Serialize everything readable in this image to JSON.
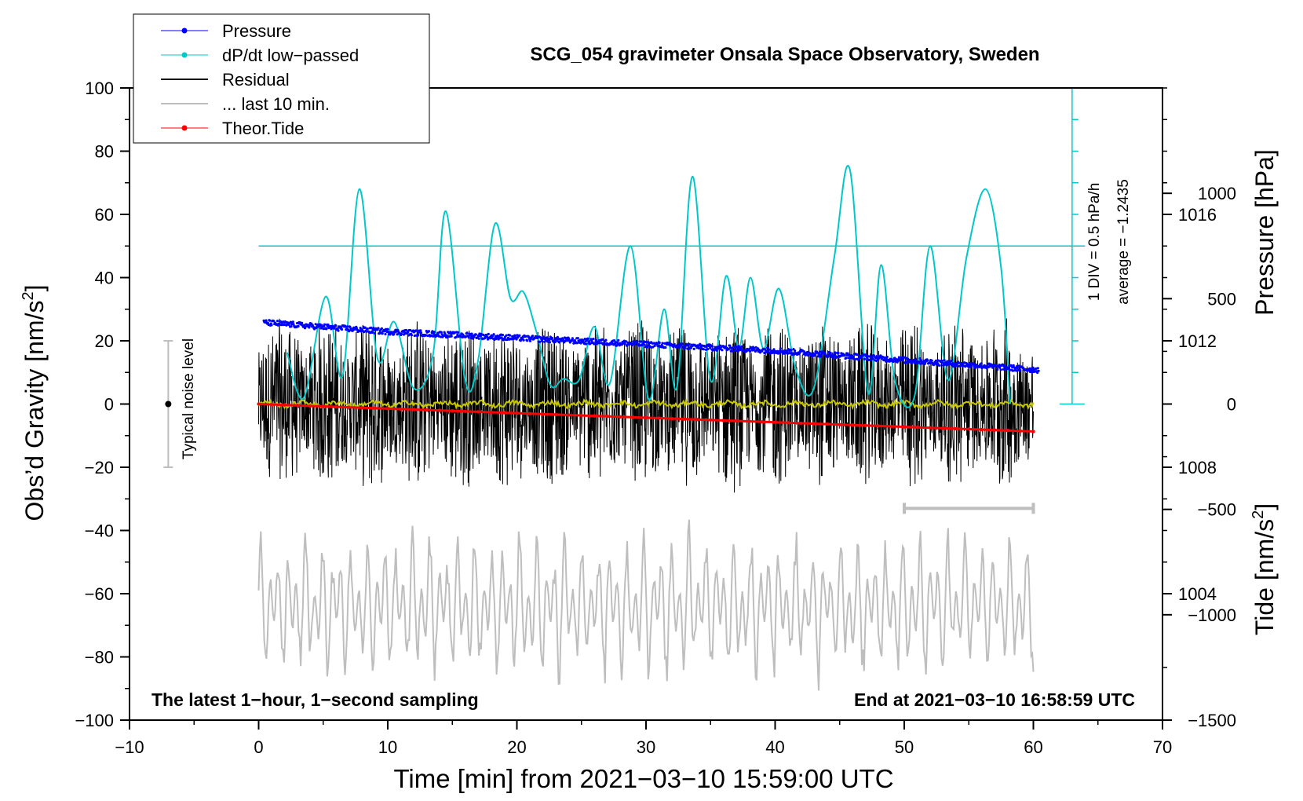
{
  "chart_data": {
    "type": "line",
    "title": "SCG_054 gravimeter Onsala Space Observatory, Sweden",
    "xlabel": "Time [min] from 2021−03−10 15:59:00 UTC",
    "ylabel_left_main": "Obs’d Gravity [nm/s",
    "ylabel_left_sup": "2",
    "ylabel_left_end": "]",
    "ylabel_right_pressure": "Pressure [hPa]",
    "ylabel_right_tide_main": "Tide [nm/s",
    "ylabel_right_tide_sup": "2",
    "ylabel_right_tide_end": "]",
    "xlim": [
      -10,
      70
    ],
    "ylim": [
      -100,
      100
    ],
    "pressure_lim": [
      1000,
      1020
    ],
    "tide_lim": [
      -1500,
      1500
    ],
    "x_ticks": [
      -10,
      0,
      10,
      20,
      30,
      40,
      50,
      60,
      70
    ],
    "x_tick_labels": [
      "−10",
      "0",
      "10",
      "20",
      "30",
      "40",
      "50",
      "60",
      "70"
    ],
    "y_ticks": [
      100,
      80,
      60,
      40,
      20,
      0,
      -20,
      -40,
      -60,
      -80,
      -100
    ],
    "y_tick_labels": [
      "100",
      "80",
      "60",
      "40",
      "20",
      "0",
      "−20",
      "−40",
      "−60",
      "−80",
      "−100"
    ],
    "pressure_ticks": [
      1016,
      1012,
      1008,
      1004
    ],
    "pressure_tick_labels": [
      "1016",
      "1012",
      "1008",
      "1004"
    ],
    "tide_ticks": [
      1000,
      500,
      0,
      -500,
      -1000,
      -1500
    ],
    "tide_tick_labels": [
      "1000",
      "500",
      "0",
      "−500",
      "−1000",
      "−1500"
    ],
    "legend": {
      "position": "top-left",
      "entries": [
        {
          "label": "Pressure",
          "color": "#0000ff",
          "marker": true
        },
        {
          "label": "dP/dt low−passed",
          "color": "#00c8c8",
          "marker": true
        },
        {
          "label": "Residual",
          "color": "#000000",
          "marker": false
        },
        {
          "label": "... last 10 min.",
          "color": "#bebebe",
          "marker": false
        },
        {
          "label": "Theor.Tide",
          "color": "#ff0000",
          "marker": true
        }
      ]
    },
    "annotations": {
      "bottom_left": "The latest 1−hour, 1−second sampling",
      "bottom_right": "End at 2021−03−10 16:58:59 UTC",
      "noise_label": "Typical noise level",
      "dpdt_div": "1 DIV = 0.5 hPa/h",
      "dpdt_avg": "average = −1.2435"
    },
    "noise_level": {
      "x": -7,
      "center": 0,
      "low": -20,
      "high": 20
    },
    "last10_bar": {
      "x_start": 50,
      "x_end": 60,
      "y": -33
    },
    "series": [
      {
        "name": "Pressure",
        "unit": "hPa",
        "color": "#0000ff",
        "x": [
          0,
          10,
          20,
          30,
          40,
          50,
          60
        ],
        "values": [
          1012.6,
          1012.3,
          1012.1,
          1011.9,
          1011.7,
          1011.4,
          1011.1
        ]
      },
      {
        "name": "dP/dt low-passed",
        "unit": "DIV",
        "color": "#00c8c8",
        "baseline_y": 50,
        "x": [
          2.2,
          3.5,
          5.2,
          6.5,
          7.8,
          9.2,
          10.5,
          12,
          13.5,
          14.5,
          16,
          17,
          18.3,
          19.5,
          20.5,
          21.5,
          22.6,
          23.6,
          24.8,
          26,
          27.2,
          28.8,
          30.2,
          31.4,
          32.4,
          33.6,
          35,
          36.2,
          37.2,
          38.1,
          39.1,
          40.3,
          41.6,
          43,
          44.6,
          45.8,
          47.2,
          48.2,
          49.3,
          50.8,
          52,
          53.4,
          54.8,
          56.3,
          57.5,
          58.2
        ],
        "values": [
          16.3,
          2,
          34,
          9,
          68,
          14.5,
          26,
          5,
          15.5,
          61,
          7.5,
          14,
          57,
          33.5,
          35.5,
          23,
          6,
          8,
          7.5,
          24.5,
          6.5,
          50,
          1.5,
          30,
          5.5,
          72,
          7.5,
          40.5,
          18,
          40,
          17.5,
          36.5,
          11,
          5,
          47,
          74,
          3.5,
          44,
          7,
          2.5,
          50,
          7.5,
          46,
          68,
          43,
          0
        ]
      },
      {
        "name": "Residual",
        "unit": "nm/s2",
        "color": "#000000",
        "x_range": [
          0,
          60
        ],
        "amplitude": 22
      },
      {
        "name": "Residual smoothed",
        "unit": "nm/s2",
        "color": "#c8c800",
        "x_range": [
          0,
          60
        ],
        "amplitude": 1.2
      },
      {
        "name": "last 10 min.",
        "unit": "nm/s2",
        "color": "#bebebe",
        "x_range": [
          0,
          60
        ],
        "center": -64,
        "amplitude": 22
      },
      {
        "name": "Theor.Tide",
        "unit": "nm/s2",
        "color": "#ff0000",
        "x": [
          0,
          60
        ],
        "values": [
          0,
          -130
        ]
      }
    ]
  }
}
